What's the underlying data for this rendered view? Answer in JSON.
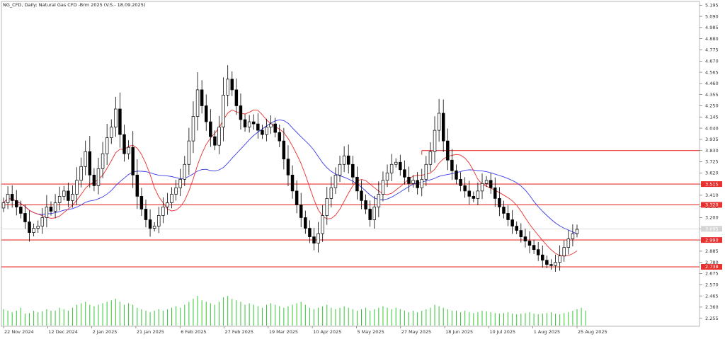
{
  "chart_data": {
    "type": "candlestick",
    "title": "NG_CFD, Daily:  Natural Gas CFD -Brm 2025  (V.S.- 18.09.2025)",
    "ylim": [
      2.18,
      5.23
    ],
    "y_ticks": [
      "5.195",
      "5.090",
      "4.985",
      "4.880",
      "4.775",
      "4.670",
      "4.565",
      "4.460",
      "4.355",
      "4.250",
      "4.145",
      "4.040",
      "3.935",
      "3.830",
      "3.725",
      "3.620",
      "3.515",
      "3.410",
      "3.305",
      "3.200",
      "3.095",
      "2.990",
      "2.885",
      "2.780",
      "2.675",
      "2.570",
      "2.465",
      "2.360",
      "2.255"
    ],
    "x_ticks": [
      "22 Nov 2024",
      "12 Dec 2024",
      "2 Jan 2025",
      "21 Jan 2025",
      "6 Feb 2025",
      "27 Feb 2025",
      "19 Mar 2025",
      "10 Apr 2025",
      "5 May 2025",
      "27 May 2025",
      "18 Jun 2025",
      "10 Jul 2025",
      "1 Aug 2025",
      "25 Aug 2025"
    ],
    "current_price": "3.095",
    "horizontal_levels": [
      {
        "value": 3.83,
        "label": "3.830"
      },
      {
        "value": 3.515,
        "label": "3.515"
      },
      {
        "value": 3.32,
        "label": "3.320"
      },
      {
        "value": 2.99,
        "label": "2.990"
      },
      {
        "value": 2.738,
        "label": "2.738"
      }
    ],
    "closes": [
      3.34,
      3.42,
      3.36,
      3.3,
      3.24,
      3.16,
      3.06,
      3.1,
      3.12,
      3.2,
      3.3,
      3.26,
      3.34,
      3.4,
      3.45,
      3.36,
      3.42,
      3.55,
      3.68,
      3.82,
      3.6,
      3.5,
      3.66,
      3.8,
      3.95,
      4.05,
      4.22,
      3.98,
      3.8,
      3.86,
      3.6,
      3.4,
      3.28,
      3.18,
      3.1,
      3.12,
      3.22,
      3.3,
      3.34,
      3.42,
      3.48,
      3.56,
      3.7,
      3.92,
      4.15,
      4.4,
      4.25,
      4.1,
      3.96,
      3.88,
      4.05,
      4.35,
      4.5,
      4.4,
      4.25,
      4.12,
      4.05,
      4.1,
      4.08,
      4.02,
      3.98,
      4.05,
      4.08,
      4.0,
      3.92,
      3.75,
      3.6,
      3.45,
      3.32,
      3.2,
      3.1,
      3.02,
      2.96,
      3.05,
      3.22,
      3.38,
      3.48,
      3.6,
      3.7,
      3.78,
      3.7,
      3.58,
      3.45,
      3.36,
      3.28,
      3.18,
      3.3,
      3.42,
      3.55,
      3.62,
      3.7,
      3.72,
      3.65,
      3.58,
      3.52,
      3.55,
      3.48,
      3.56,
      3.7,
      3.82,
      4.02,
      4.18,
      3.92,
      3.74,
      3.64,
      3.56,
      3.5,
      3.45,
      3.4,
      3.38,
      3.45,
      3.52,
      3.55,
      3.48,
      3.38,
      3.3,
      3.24,
      3.18,
      3.12,
      3.08,
      3.02,
      2.98,
      2.94,
      2.9,
      2.85,
      2.8,
      2.76,
      2.75,
      2.78,
      2.84,
      2.92,
      3.0,
      3.05,
      3.09
    ],
    "volumes": [
      0.55,
      0.5,
      0.45,
      0.5,
      0.6,
      0.4,
      0.42,
      0.5,
      0.45,
      0.48,
      0.55,
      0.5,
      0.5,
      0.6,
      0.55,
      0.5,
      0.6,
      0.7,
      0.75,
      0.8,
      0.7,
      0.65,
      0.7,
      0.75,
      0.8,
      0.85,
      0.9,
      0.8,
      0.7,
      0.75,
      0.7,
      0.6,
      0.55,
      0.5,
      0.45,
      0.5,
      0.55,
      0.5,
      0.55,
      0.6,
      0.65,
      0.6,
      0.7,
      0.8,
      0.9,
      1.0,
      0.85,
      0.8,
      0.75,
      0.7,
      0.8,
      0.95,
      1.0,
      0.9,
      0.85,
      0.8,
      0.7,
      0.75,
      0.7,
      0.65,
      0.6,
      0.7,
      0.75,
      0.7,
      0.65,
      0.6,
      0.65,
      0.7,
      0.75,
      0.8,
      0.7,
      0.6,
      0.55,
      0.6,
      0.65,
      0.7,
      0.6,
      0.55,
      0.6,
      0.65,
      0.6,
      0.55,
      0.5,
      0.55,
      0.6,
      0.5,
      0.55,
      0.6,
      0.65,
      0.6,
      0.55,
      0.6,
      0.55,
      0.5,
      0.45,
      0.5,
      0.45,
      0.5,
      0.55,
      0.6,
      0.7,
      0.65,
      0.6,
      0.55,
      0.5,
      0.5,
      0.45,
      0.5,
      0.45,
      0.42,
      0.45,
      0.5,
      0.48,
      0.45,
      0.42,
      0.4,
      0.42,
      0.45,
      0.4,
      0.38,
      0.4,
      0.42,
      0.45,
      0.4,
      0.38,
      0.4,
      0.42,
      0.45,
      0.4,
      0.38,
      0.42,
      0.45,
      0.5,
      0.55,
      0.6,
      0.5
    ],
    "colors": {
      "bull": "#ffffff",
      "bear": "#000000",
      "outline": "#000000",
      "ma_fast": "#e8302f",
      "ma_slow": "#3a3ae8",
      "level_line": "#e8302f",
      "label_bg": "#e8302f",
      "volume": "#34c634",
      "grid_price_line": "#c8c8c8"
    }
  }
}
